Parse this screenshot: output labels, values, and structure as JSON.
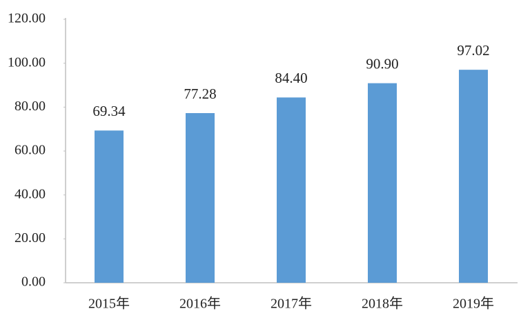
{
  "chart_data": {
    "type": "bar",
    "categories": [
      "2015年",
      "2016年",
      "2017年",
      "2018年",
      "2019年"
    ],
    "values": [
      69.34,
      77.28,
      84.4,
      90.9,
      97.02
    ],
    "value_labels": [
      "69.34",
      "77.28",
      "84.40",
      "90.90",
      "97.02"
    ],
    "color": "#5b9bd5",
    "ylim": [
      0,
      120
    ],
    "yticks": [
      {
        "value": 0,
        "label": "0.00"
      },
      {
        "value": 20,
        "label": "20.00"
      },
      {
        "value": 40,
        "label": "40.00"
      },
      {
        "value": 60,
        "label": "60.00"
      },
      {
        "value": 80,
        "label": "80.00"
      },
      {
        "value": 100,
        "label": "100.00"
      },
      {
        "value": 120,
        "label": "120.00"
      }
    ]
  }
}
